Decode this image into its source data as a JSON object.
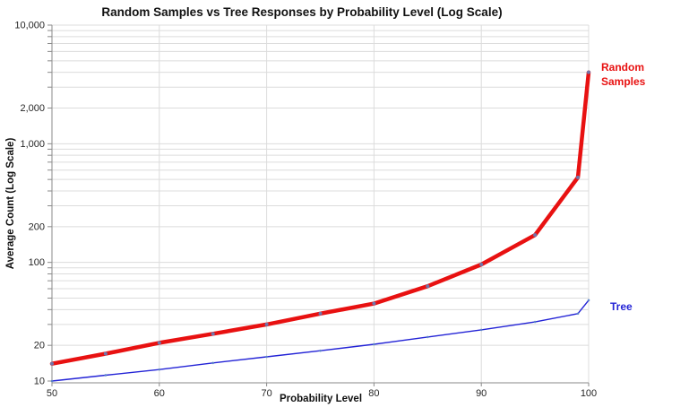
{
  "title": "Random Samples vs Tree Responses by Probability Level (Log Scale)",
  "chart_data": {
    "type": "line",
    "title": "Random Samples vs Tree Responses by Probability Level (Log Scale)",
    "xlabel": "Probability Level",
    "ylabel": "Average Count (Log Scale)",
    "y_scale": "log",
    "xlim": [
      50,
      100
    ],
    "ylim": [
      10,
      10000
    ],
    "grid": true,
    "legend_position": "line-end-labels-right",
    "x_ticks": [
      50,
      60,
      70,
      80,
      90,
      100
    ],
    "y_ticks": [
      {
        "v": 10,
        "label": "10"
      },
      {
        "v": 20,
        "label": "20"
      },
      {
        "v": 100,
        "label": "100"
      },
      {
        "v": 200,
        "label": "200"
      },
      {
        "v": 1000,
        "label": "1,000"
      },
      {
        "v": 2000,
        "label": "2,000"
      },
      {
        "v": 10000,
        "label": "10,000"
      }
    ],
    "x": [
      50,
      55,
      60,
      65,
      70,
      75,
      80,
      85,
      90,
      95,
      99,
      100
    ],
    "series": [
      {
        "name": "Random Samples",
        "end_label": "Random\nSamples",
        "color": "#e81111",
        "values": [
          14,
          17,
          21,
          25,
          30,
          37,
          45,
          63,
          96,
          170,
          520,
          4000
        ]
      },
      {
        "name": "Tree",
        "end_label": "Tree",
        "color": "#2323d6",
        "values": [
          10,
          11.2,
          12.5,
          14.2,
          16,
          18,
          20.4,
          23.5,
          27,
          31.5,
          37,
          48
        ]
      }
    ],
    "marker_color": "#5b87c7"
  }
}
